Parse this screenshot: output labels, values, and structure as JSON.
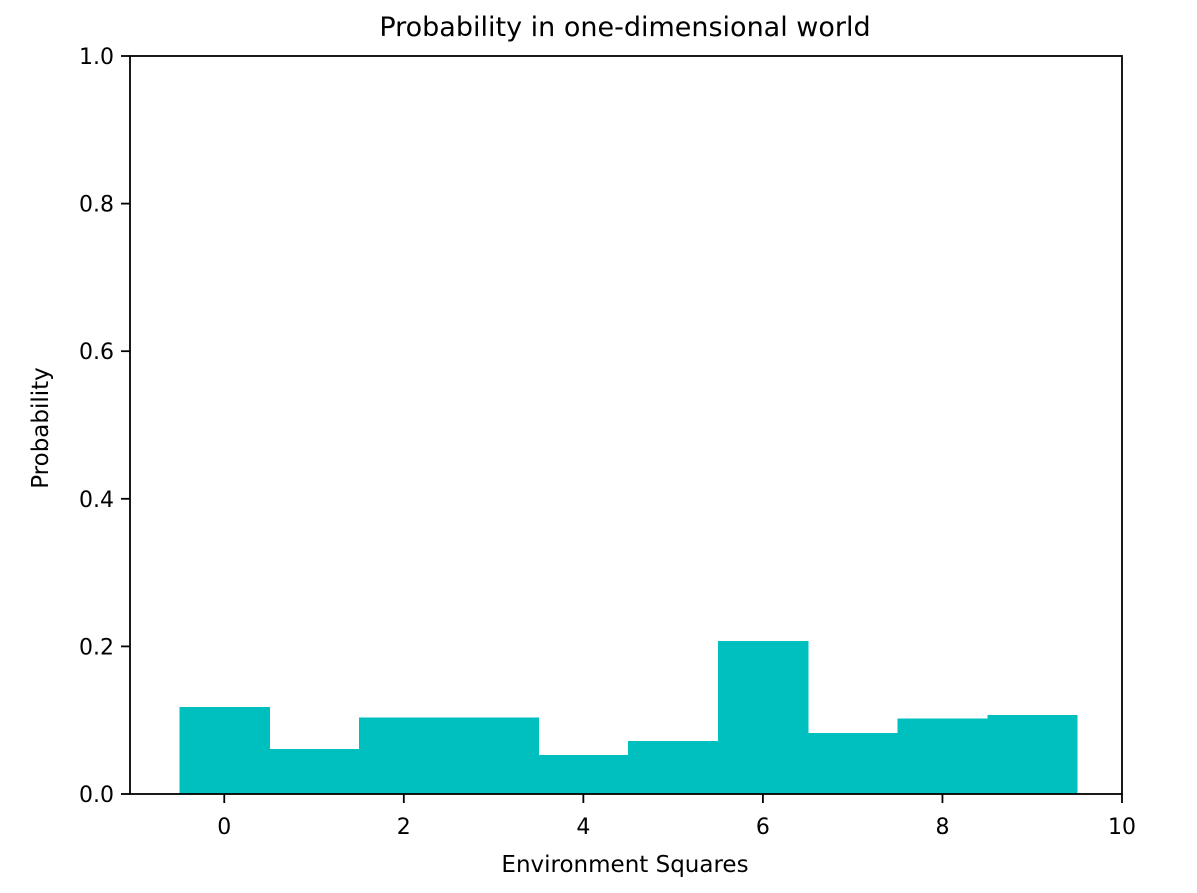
{
  "chart_data": {
    "type": "bar",
    "title": "Probability in one-dimensional world",
    "xlabel": "Environment Squares",
    "ylabel": "Probability",
    "categories": [
      0,
      1,
      2,
      3,
      4,
      5,
      6,
      7,
      8,
      9
    ],
    "values": [
      0.118,
      0.061,
      0.104,
      0.104,
      0.053,
      0.072,
      0.207,
      0.083,
      0.102,
      0.107
    ],
    "bar_width": 1.0,
    "xlim": [
      -1.05,
      10.0
    ],
    "ylim": [
      0.0,
      1.0
    ],
    "xticks": [
      0,
      2,
      4,
      6,
      8,
      10
    ],
    "xtick_labels": [
      "0",
      "2",
      "4",
      "6",
      "8",
      "10"
    ],
    "yticks": [
      0.0,
      0.2,
      0.4,
      0.6,
      0.8,
      1.0
    ],
    "ytick_labels": [
      "0.0",
      "0.2",
      "0.4",
      "0.6",
      "0.8",
      "1.0"
    ],
    "bar_color": "#00bfbf",
    "grid": false,
    "legend": "none"
  }
}
